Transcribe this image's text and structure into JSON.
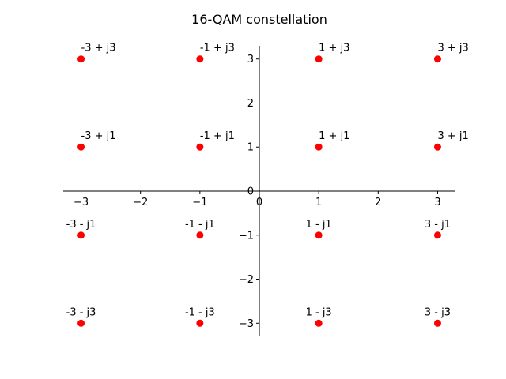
{
  "chart_data": {
    "type": "scatter",
    "title": "16-QAM constellation",
    "xlabel": "",
    "ylabel": "",
    "xlim": [
      -3.3,
      3.3
    ],
    "ylim": [
      -3.3,
      3.3
    ],
    "grid": false,
    "axes_style": "spines at origin",
    "x_ticks": [
      {
        "value": -3,
        "label": "−3"
      },
      {
        "value": -2,
        "label": "−2"
      },
      {
        "value": -1,
        "label": "−1"
      },
      {
        "value": 0,
        "label": "0"
      },
      {
        "value": 1,
        "label": "1"
      },
      {
        "value": 2,
        "label": "2"
      },
      {
        "value": 3,
        "label": "3"
      }
    ],
    "y_ticks": [
      {
        "value": -3,
        "label": "−3"
      },
      {
        "value": -2,
        "label": "−2"
      },
      {
        "value": -1,
        "label": "−1"
      },
      {
        "value": 0,
        "label": "0"
      },
      {
        "value": 1,
        "label": "1"
      },
      {
        "value": 2,
        "label": "2"
      },
      {
        "value": 3,
        "label": "3"
      }
    ],
    "marker_color": "#ff0000",
    "points": [
      {
        "x": -3,
        "y": 3,
        "label": "-3 + j3"
      },
      {
        "x": -1,
        "y": 3,
        "label": "-1 + j3"
      },
      {
        "x": 1,
        "y": 3,
        "label": "1 + j3"
      },
      {
        "x": 3,
        "y": 3,
        "label": "3 + j3"
      },
      {
        "x": -3,
        "y": 1,
        "label": "-3 + j1"
      },
      {
        "x": -1,
        "y": 1,
        "label": "-1 + j1"
      },
      {
        "x": 1,
        "y": 1,
        "label": "1 + j1"
      },
      {
        "x": 3,
        "y": 1,
        "label": "3 + j1"
      },
      {
        "x": -3,
        "y": -1,
        "label": "-3 - j1"
      },
      {
        "x": -1,
        "y": -1,
        "label": "-1 - j1"
      },
      {
        "x": 1,
        "y": -1,
        "label": "1 - j1"
      },
      {
        "x": 3,
        "y": -1,
        "label": "3 - j1"
      },
      {
        "x": -3,
        "y": -3,
        "label": "-3 - j3"
      },
      {
        "x": -1,
        "y": -3,
        "label": "-1 - j3"
      },
      {
        "x": 1,
        "y": -3,
        "label": "1 - j3"
      },
      {
        "x": 3,
        "y": -3,
        "label": "3 - j3"
      }
    ]
  }
}
